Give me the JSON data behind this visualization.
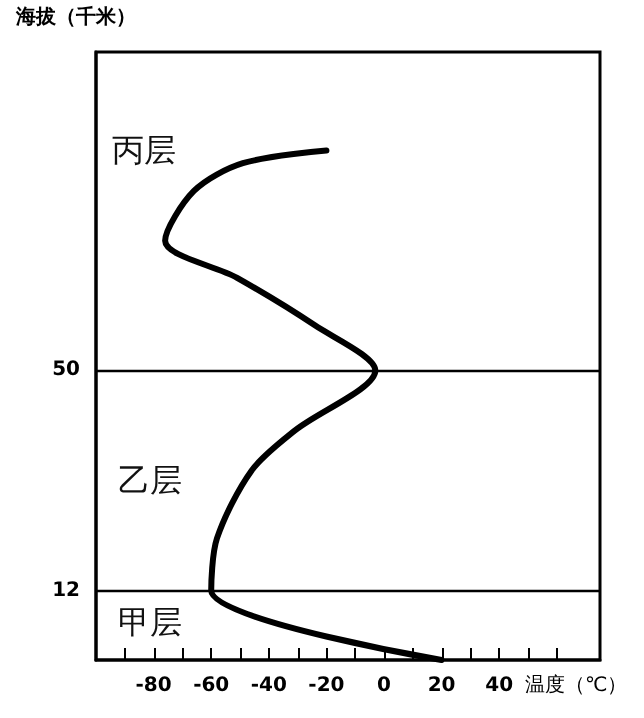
{
  "chart_data": {
    "type": "line",
    "xlabel": "温度（℃）",
    "ylabel": "海拔（千米）",
    "series": [
      {
        "color": "#000000",
        "x": [
          20,
          -60,
          -58,
          -46,
          -31,
          -3,
          -24,
          -51,
          -76,
          -66,
          -49,
          -20
        ],
        "values": [
          0,
          12,
          21,
          32.7,
          39.6,
          50,
          57.8,
          66,
          72.4,
          81,
          85.8,
          88
        ]
      }
    ],
    "xlim": [
      -100,
      75
    ],
    "xticks": [
      {
        "value": -90,
        "label": null
      },
      -80,
      {
        "value": -70,
        "label": null
      },
      -60,
      {
        "value": -50,
        "label": null
      },
      -40,
      {
        "value": -30,
        "label": null
      },
      -20,
      {
        "value": -10,
        "label": null
      },
      0,
      {
        "value": 10,
        "label": null
      },
      20,
      {
        "value": 30,
        "label": null
      },
      40,
      {
        "value": 50,
        "label": null
      },
      {
        "value": 60,
        "label": null
      }
    ],
    "ylim": [
      0,
      105
    ],
    "yticks": [
      12,
      50
    ],
    "ref_lines": [
      {
        "axis": "y",
        "value": 12
      },
      {
        "axis": "y",
        "value": 50
      }
    ],
    "annotations": [
      "丙层",
      "乙层",
      "甲层"
    ],
    "marker": "none",
    "grid": false
  }
}
